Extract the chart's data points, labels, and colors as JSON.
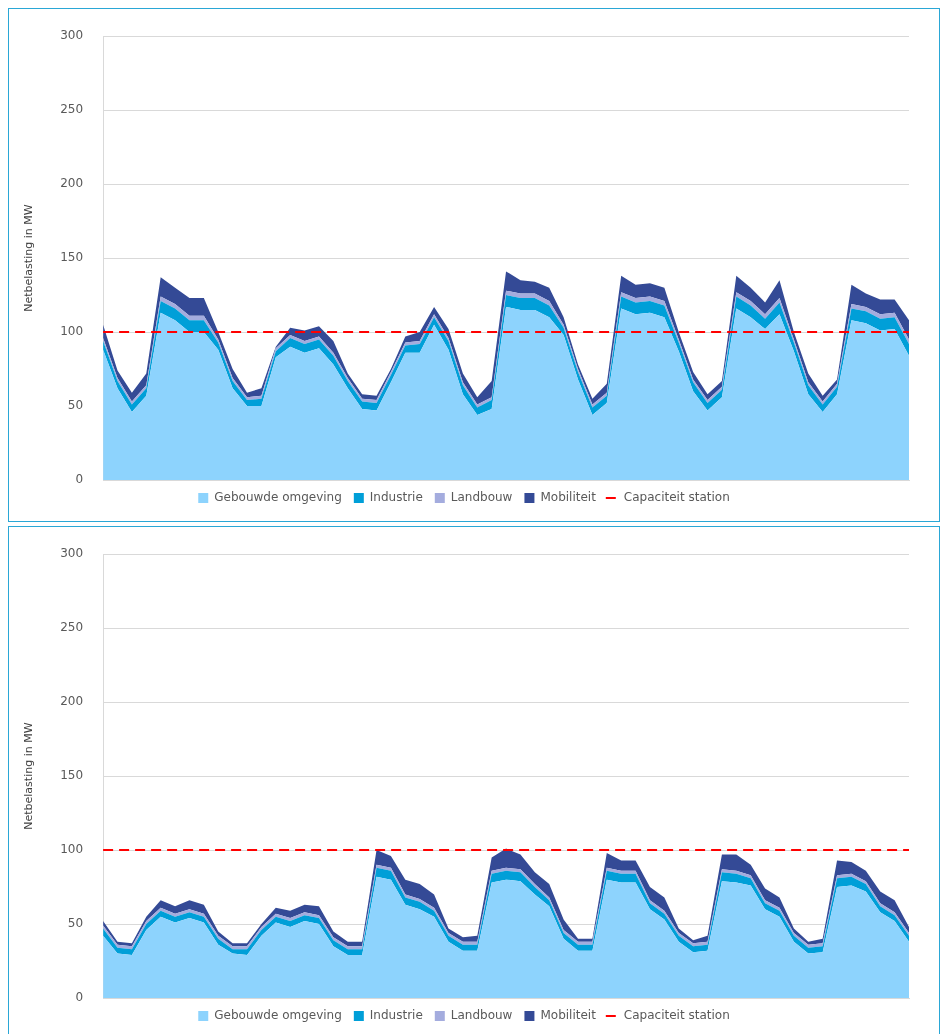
{
  "chart_data": [
    {
      "type": "area",
      "stacked": true,
      "ylabel": "Netbelasting in MW",
      "ylim": [
        0,
        300
      ],
      "yticks": [
        0,
        50,
        100,
        150,
        200,
        250,
        300
      ],
      "grid": "y",
      "legend": "bottom",
      "categories": [
        null,
        null,
        null,
        null,
        null,
        null,
        null,
        null,
        null,
        null,
        null,
        null,
        null,
        null,
        null,
        null,
        null,
        null,
        null,
        null,
        null,
        null,
        null,
        null,
        null,
        null,
        null,
        null,
        null,
        null,
        null,
        null,
        null,
        null,
        null,
        null,
        null,
        null,
        null,
        null,
        null,
        null,
        null,
        null,
        null,
        null,
        null,
        null,
        null,
        null,
        null,
        null,
        null,
        null,
        null,
        null,
        null
      ],
      "series": [
        {
          "name": "Gebouwde omgeving",
          "color": "#8dd3fd",
          "values": [
            88,
            62,
            46,
            57,
            113,
            108,
            100,
            100,
            88,
            62,
            50,
            50,
            83,
            90,
            86,
            89,
            78,
            62,
            48,
            47,
            66,
            86,
            86,
            105,
            88,
            58,
            44,
            48,
            117,
            115,
            115,
            110,
            98,
            68,
            44,
            52,
            116,
            112,
            113,
            110,
            87,
            60,
            47,
            56,
            116,
            110,
            102,
            112,
            87,
            58,
            46,
            58,
            108,
            106,
            101,
            102,
            84
          ]
        },
        {
          "name": "Industrie",
          "color": "#009fd8",
          "values": [
            6,
            5,
            5,
            5,
            8,
            8,
            8,
            8,
            5,
            5,
            4,
            5,
            4,
            6,
            6,
            6,
            6,
            5,
            5,
            5,
            5,
            5,
            6,
            5,
            6,
            6,
            5,
            6,
            8,
            8,
            8,
            8,
            5,
            5,
            5,
            5,
            8,
            8,
            8,
            8,
            6,
            6,
            5,
            5,
            8,
            8,
            7,
            8,
            6,
            6,
            5,
            5,
            8,
            8,
            8,
            8,
            8
          ]
        },
        {
          "name": "Landbouw",
          "color": "#a4acde",
          "values": [
            2,
            2,
            2,
            2,
            3,
            3,
            3,
            3,
            2,
            2,
            2,
            2,
            2,
            2,
            2,
            2,
            2,
            2,
            2,
            2,
            2,
            2,
            2,
            2,
            2,
            2,
            2,
            2,
            3,
            3,
            3,
            3,
            2,
            2,
            2,
            2,
            3,
            3,
            3,
            3,
            2,
            2,
            2,
            2,
            3,
            3,
            3,
            3,
            2,
            2,
            2,
            2,
            3,
            3,
            3,
            3,
            3
          ]
        },
        {
          "name": "Mobiliteit",
          "color": "#344a96",
          "values": [
            9,
            5,
            6,
            8,
            13,
            11,
            12,
            12,
            5,
            6,
            3,
            5,
            1,
            5,
            7,
            7,
            8,
            3,
            3,
            3,
            2,
            4,
            6,
            5,
            6,
            6,
            5,
            11,
            13,
            9,
            8,
            9,
            5,
            3,
            4,
            6,
            11,
            9,
            9,
            9,
            5,
            5,
            4,
            4,
            11,
            9,
            8,
            12,
            5,
            6,
            4,
            3,
            13,
            9,
            10,
            9,
            13
          ]
        }
      ],
      "ref_lines": [
        {
          "axis": "y",
          "value": 100,
          "label": "Capaciteit station",
          "color": "#ff0000",
          "line_style": "dashed"
        }
      ]
    },
    {
      "type": "area",
      "stacked": true,
      "ylabel": "Netbelasting in MW",
      "ylim": [
        0,
        300
      ],
      "yticks": [
        0,
        50,
        100,
        150,
        200,
        250,
        300
      ],
      "grid": "y",
      "legend": "bottom",
      "categories": [
        null,
        null,
        null,
        null,
        null,
        null,
        null,
        null,
        null,
        null,
        null,
        null,
        null,
        null,
        null,
        null,
        null,
        null,
        null,
        null,
        null,
        null,
        null,
        null,
        null,
        null,
        null,
        null,
        null,
        null,
        null,
        null,
        null,
        null,
        null,
        null,
        null,
        null,
        null,
        null,
        null,
        null,
        null,
        null,
        null,
        null,
        null,
        null,
        null,
        null,
        null,
        null,
        null,
        null,
        null,
        null,
        null
      ],
      "series": [
        {
          "name": "Gebouwde omgeving",
          "color": "#8dd3fd",
          "values": [
            42,
            30,
            29,
            46,
            55,
            51,
            54,
            51,
            36,
            30,
            29,
            42,
            51,
            48,
            52,
            50,
            35,
            29,
            29,
            82,
            80,
            63,
            60,
            55,
            38,
            32,
            32,
            78,
            80,
            79,
            70,
            62,
            40,
            32,
            32,
            80,
            78,
            78,
            60,
            53,
            38,
            31,
            32,
            79,
            78,
            76,
            60,
            55,
            38,
            30,
            31,
            75,
            76,
            72,
            58,
            52,
            38
          ]
        },
        {
          "name": "Industrie",
          "color": "#009fd8",
          "values": [
            5,
            4,
            4,
            4,
            4,
            4,
            4,
            4,
            4,
            3,
            4,
            4,
            4,
            4,
            4,
            4,
            4,
            4,
            4,
            6,
            6,
            5,
            5,
            4,
            4,
            4,
            4,
            6,
            6,
            6,
            5,
            4,
            4,
            4,
            4,
            6,
            6,
            6,
            4,
            4,
            4,
            4,
            4,
            6,
            6,
            5,
            4,
            4,
            4,
            4,
            4,
            6,
            6,
            5,
            4,
            4,
            4
          ]
        },
        {
          "name": "Landbouw",
          "color": "#a4acde",
          "values": [
            2,
            2,
            2,
            2,
            2,
            2,
            2,
            2,
            2,
            2,
            2,
            2,
            2,
            2,
            2,
            2,
            2,
            2,
            2,
            2,
            2,
            2,
            2,
            2,
            2,
            2,
            2,
            2,
            2,
            2,
            2,
            2,
            2,
            2,
            2,
            2,
            2,
            2,
            2,
            2,
            2,
            2,
            2,
            2,
            2,
            2,
            2,
            2,
            2,
            2,
            2,
            2,
            2,
            2,
            2,
            2,
            2
          ]
        },
        {
          "name": "Mobiliteit",
          "color": "#344a96",
          "values": [
            3,
            2,
            2,
            3,
            5,
            5,
            6,
            6,
            3,
            2,
            2,
            2,
            4,
            5,
            5,
            6,
            4,
            3,
            3,
            10,
            8,
            10,
            10,
            9,
            3,
            3,
            4,
            9,
            13,
            10,
            8,
            9,
            7,
            2,
            2,
            10,
            7,
            7,
            9,
            9,
            3,
            2,
            4,
            10,
            11,
            7,
            8,
            7,
            3,
            2,
            3,
            10,
            8,
            7,
            8,
            8,
            4
          ]
        }
      ],
      "ref_lines": [
        {
          "axis": "y",
          "value": 100,
          "label": "Capaciteit station",
          "color": "#ff0000",
          "line_style": "dashed"
        }
      ]
    }
  ]
}
